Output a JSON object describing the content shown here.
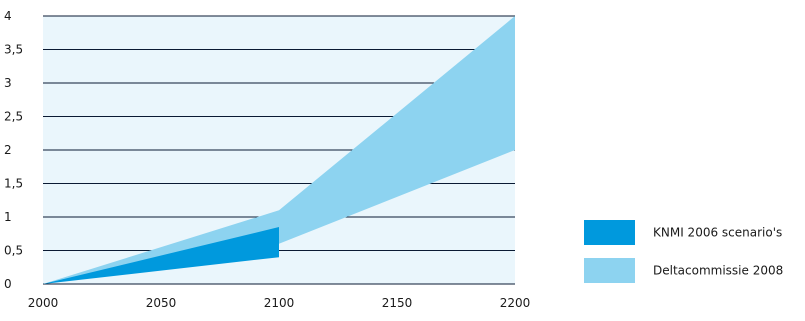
{
  "chart_data": {
    "type": "area",
    "x_axis": {
      "ticks": [
        2000,
        2050,
        2100,
        2150,
        2200
      ],
      "tick_labels": [
        "2000",
        "2050",
        "2100",
        "2150",
        "2200"
      ],
      "range": [
        2000,
        2200
      ]
    },
    "y_axis": {
      "ticks": [
        0,
        0.5,
        1,
        1.5,
        2,
        2.5,
        3,
        3.5,
        4
      ],
      "tick_labels": [
        "0",
        "0,5",
        "1",
        "1,5",
        "2",
        "2,5",
        "3",
        "3,5",
        "4"
      ],
      "range": [
        0,
        4
      ]
    },
    "grid": "horizontal",
    "legend_position": "bottom-right",
    "series": [
      {
        "name": "Deltacommissie 2008",
        "color": "#8dd3f0",
        "x": [
          2000,
          2100,
          2200
        ],
        "upper": [
          0,
          1.1,
          4
        ],
        "lower": [
          0,
          0.6,
          2
        ]
      },
      {
        "name": "KNMI 2006 scenario's",
        "color": "#0099dd",
        "x": [
          2000,
          2100
        ],
        "upper": [
          0,
          0.85
        ],
        "lower": [
          0,
          0.4
        ]
      }
    ],
    "legend": [
      {
        "label": "KNMI 2006 scenario's",
        "color": "#0099dd"
      },
      {
        "label": "Deltacommissie 2008",
        "color": "#8dd3f0"
      }
    ]
  },
  "colors": {
    "plot_background": "#eaf6fc",
    "grid_line": "#0a1a33",
    "axis_text": "#1a1a1a"
  }
}
